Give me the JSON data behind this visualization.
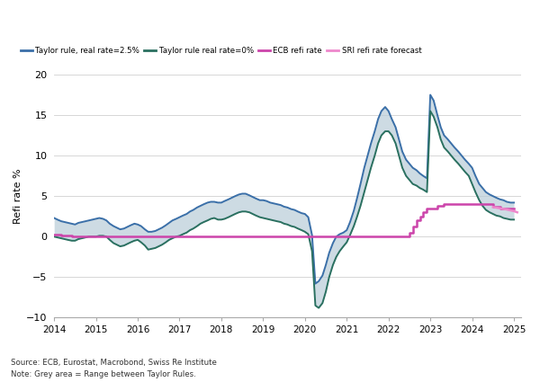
{
  "ylabel": "Refi rate %",
  "xlim": [
    2014.0,
    2025.17
  ],
  "ylim": [
    -10,
    20
  ],
  "yticks": [
    -10,
    -5,
    0,
    5,
    10,
    15,
    20
  ],
  "background_color": "#ffffff",
  "grid_color": "#d0d0d0",
  "fill_color": "#b8ccd8",
  "line_taylor_25_color": "#3a6fa8",
  "line_taylor_0_color": "#2a7060",
  "line_ecb_color": "#cc44aa",
  "line_sri_color": "#ee88cc",
  "source_text": "Source: ECB, Eurostat, Macrobond, Swiss Re Institute\nNote: Grey area = Range between Taylor Rules.",
  "legend_items": [
    {
      "label": "Taylor rule, real rate=2.5%",
      "color": "#3a6fa8"
    },
    {
      "label": "Taylor rule real rate=0%",
      "color": "#2a7060"
    },
    {
      "label": "ECB refi rate",
      "color": "#cc44aa"
    },
    {
      "label": "SRI refi rate forecast",
      "color": "#ee88cc"
    }
  ],
  "taylor_25_t": [
    2014.0,
    2014.08,
    2014.17,
    2014.25,
    2014.33,
    2014.42,
    2014.5,
    2014.58,
    2014.67,
    2014.75,
    2014.83,
    2014.92,
    2015.0,
    2015.08,
    2015.17,
    2015.25,
    2015.33,
    2015.42,
    2015.5,
    2015.58,
    2015.67,
    2015.75,
    2015.83,
    2015.92,
    2016.0,
    2016.08,
    2016.17,
    2016.25,
    2016.33,
    2016.42,
    2016.5,
    2016.58,
    2016.67,
    2016.75,
    2016.83,
    2016.92,
    2017.0,
    2017.08,
    2017.17,
    2017.25,
    2017.33,
    2017.42,
    2017.5,
    2017.58,
    2017.67,
    2017.75,
    2017.83,
    2017.92,
    2018.0,
    2018.08,
    2018.17,
    2018.25,
    2018.33,
    2018.42,
    2018.5,
    2018.58,
    2018.67,
    2018.75,
    2018.83,
    2018.92,
    2019.0,
    2019.08,
    2019.17,
    2019.25,
    2019.33,
    2019.42,
    2019.5,
    2019.58,
    2019.67,
    2019.75,
    2019.83,
    2019.92,
    2020.0,
    2020.08,
    2020.17,
    2020.25,
    2020.33,
    2020.42,
    2020.5,
    2020.58,
    2020.67,
    2020.75,
    2020.83,
    2020.92,
    2021.0,
    2021.08,
    2021.17,
    2021.25,
    2021.33,
    2021.42,
    2021.5,
    2021.58,
    2021.67,
    2021.75,
    2021.83,
    2021.92,
    2022.0,
    2022.08,
    2022.17,
    2022.25,
    2022.33,
    2022.42,
    2022.5,
    2022.58,
    2022.67,
    2022.75,
    2022.83,
    2022.92,
    2023.0,
    2023.08,
    2023.17,
    2023.25,
    2023.33,
    2023.42,
    2023.5,
    2023.58,
    2023.67,
    2023.75,
    2023.83,
    2023.92,
    2024.0,
    2024.08,
    2024.17,
    2024.25,
    2024.33,
    2024.42,
    2024.5,
    2024.58,
    2024.67,
    2024.75,
    2024.83,
    2024.92,
    2025.0
  ],
  "taylor_25_v": [
    2.3,
    2.1,
    1.9,
    1.8,
    1.7,
    1.6,
    1.5,
    1.7,
    1.8,
    1.9,
    2.0,
    2.1,
    2.2,
    2.3,
    2.2,
    2.0,
    1.6,
    1.3,
    1.1,
    0.9,
    1.0,
    1.2,
    1.4,
    1.6,
    1.5,
    1.3,
    0.9,
    0.6,
    0.6,
    0.7,
    0.9,
    1.1,
    1.4,
    1.7,
    2.0,
    2.2,
    2.4,
    2.6,
    2.8,
    3.1,
    3.3,
    3.6,
    3.8,
    4.0,
    4.2,
    4.3,
    4.3,
    4.2,
    4.2,
    4.4,
    4.6,
    4.8,
    5.0,
    5.2,
    5.3,
    5.3,
    5.1,
    4.9,
    4.7,
    4.5,
    4.5,
    4.4,
    4.2,
    4.1,
    4.0,
    3.9,
    3.7,
    3.6,
    3.4,
    3.3,
    3.1,
    2.9,
    2.8,
    2.4,
    0.2,
    -5.8,
    -5.5,
    -4.8,
    -3.5,
    -2.0,
    -0.8,
    0.0,
    0.3,
    0.5,
    0.8,
    1.8,
    3.2,
    4.8,
    6.5,
    8.5,
    10.0,
    11.5,
    13.0,
    14.5,
    15.5,
    16.0,
    15.5,
    14.5,
    13.5,
    12.0,
    10.5,
    9.5,
    9.0,
    8.5,
    8.2,
    7.8,
    7.5,
    7.2,
    17.5,
    16.8,
    15.0,
    13.5,
    12.5,
    12.0,
    11.5,
    11.0,
    10.5,
    10.0,
    9.5,
    9.0,
    8.5,
    7.5,
    6.5,
    6.0,
    5.5,
    5.2,
    5.0,
    4.8,
    4.6,
    4.5,
    4.3,
    4.2,
    4.2
  ],
  "taylor_0_t": [
    2014.0,
    2014.08,
    2014.17,
    2014.25,
    2014.33,
    2014.42,
    2014.5,
    2014.58,
    2014.67,
    2014.75,
    2014.83,
    2014.92,
    2015.0,
    2015.08,
    2015.17,
    2015.25,
    2015.33,
    2015.42,
    2015.5,
    2015.58,
    2015.67,
    2015.75,
    2015.83,
    2015.92,
    2016.0,
    2016.08,
    2016.17,
    2016.25,
    2016.33,
    2016.42,
    2016.5,
    2016.58,
    2016.67,
    2016.75,
    2016.83,
    2016.92,
    2017.0,
    2017.08,
    2017.17,
    2017.25,
    2017.33,
    2017.42,
    2017.5,
    2017.58,
    2017.67,
    2017.75,
    2017.83,
    2017.92,
    2018.0,
    2018.08,
    2018.17,
    2018.25,
    2018.33,
    2018.42,
    2018.5,
    2018.58,
    2018.67,
    2018.75,
    2018.83,
    2018.92,
    2019.0,
    2019.08,
    2019.17,
    2019.25,
    2019.33,
    2019.42,
    2019.5,
    2019.58,
    2019.67,
    2019.75,
    2019.83,
    2019.92,
    2020.0,
    2020.08,
    2020.17,
    2020.25,
    2020.33,
    2020.42,
    2020.5,
    2020.58,
    2020.67,
    2020.75,
    2020.83,
    2020.92,
    2021.0,
    2021.08,
    2021.17,
    2021.25,
    2021.33,
    2021.42,
    2021.5,
    2021.58,
    2021.67,
    2021.75,
    2021.83,
    2021.92,
    2022.0,
    2022.08,
    2022.17,
    2022.25,
    2022.33,
    2022.42,
    2022.5,
    2022.58,
    2022.67,
    2022.75,
    2022.83,
    2022.92,
    2023.0,
    2023.08,
    2023.17,
    2023.25,
    2023.33,
    2023.42,
    2023.5,
    2023.58,
    2023.67,
    2023.75,
    2023.83,
    2023.92,
    2024.0,
    2024.08,
    2024.17,
    2024.25,
    2024.33,
    2024.42,
    2024.5,
    2024.58,
    2024.67,
    2024.75,
    2024.83,
    2024.92,
    2025.0
  ],
  "taylor_0_v": [
    0.0,
    -0.1,
    -0.2,
    -0.3,
    -0.4,
    -0.5,
    -0.5,
    -0.3,
    -0.2,
    -0.1,
    0.0,
    0.0,
    0.0,
    0.1,
    0.1,
    0.0,
    -0.4,
    -0.8,
    -1.0,
    -1.2,
    -1.1,
    -0.9,
    -0.7,
    -0.5,
    -0.4,
    -0.7,
    -1.1,
    -1.6,
    -1.5,
    -1.4,
    -1.2,
    -1.0,
    -0.7,
    -0.4,
    -0.2,
    0.0,
    0.1,
    0.3,
    0.5,
    0.8,
    1.0,
    1.3,
    1.6,
    1.8,
    2.0,
    2.2,
    2.3,
    2.1,
    2.1,
    2.2,
    2.4,
    2.6,
    2.8,
    3.0,
    3.1,
    3.1,
    3.0,
    2.8,
    2.6,
    2.4,
    2.3,
    2.2,
    2.1,
    2.0,
    1.9,
    1.8,
    1.6,
    1.5,
    1.3,
    1.2,
    1.0,
    0.8,
    0.6,
    0.3,
    -1.8,
    -8.5,
    -8.8,
    -8.2,
    -6.8,
    -5.0,
    -3.5,
    -2.5,
    -1.8,
    -1.2,
    -0.7,
    0.2,
    1.3,
    2.5,
    3.8,
    5.5,
    7.0,
    8.5,
    10.0,
    11.5,
    12.5,
    13.0,
    13.0,
    12.5,
    11.5,
    10.0,
    8.5,
    7.5,
    7.0,
    6.5,
    6.3,
    6.0,
    5.8,
    5.5,
    15.5,
    14.8,
    13.5,
    12.0,
    11.0,
    10.5,
    10.0,
    9.5,
    9.0,
    8.5,
    8.0,
    7.5,
    6.5,
    5.5,
    4.5,
    3.8,
    3.3,
    3.0,
    2.8,
    2.6,
    2.5,
    2.3,
    2.2,
    2.1,
    2.1
  ],
  "ecb_t": [
    2014.0,
    2014.17,
    2014.42,
    2014.5,
    2015.0,
    2016.0,
    2017.0,
    2018.0,
    2019.0,
    2020.0,
    2021.0,
    2022.0,
    2022.25,
    2022.5,
    2022.58,
    2022.67,
    2022.75,
    2022.83,
    2022.92,
    2023.0,
    2023.17,
    2023.33,
    2023.42,
    2024.0,
    2024.25,
    2024.5,
    2024.67,
    2025.0
  ],
  "ecb_v": [
    0.25,
    0.15,
    0.05,
    0.05,
    0.05,
    0.0,
    0.0,
    0.0,
    0.0,
    0.0,
    0.0,
    0.0,
    0.0,
    0.5,
    1.25,
    2.0,
    2.5,
    3.0,
    3.5,
    3.5,
    3.75,
    4.0,
    4.0,
    4.0,
    4.0,
    3.65,
    3.5,
    3.5
  ],
  "sri_t": [
    2024.5,
    2024.67,
    2024.83,
    2025.0,
    2025.08
  ],
  "sri_v": [
    3.65,
    3.5,
    3.35,
    3.15,
    3.0
  ]
}
